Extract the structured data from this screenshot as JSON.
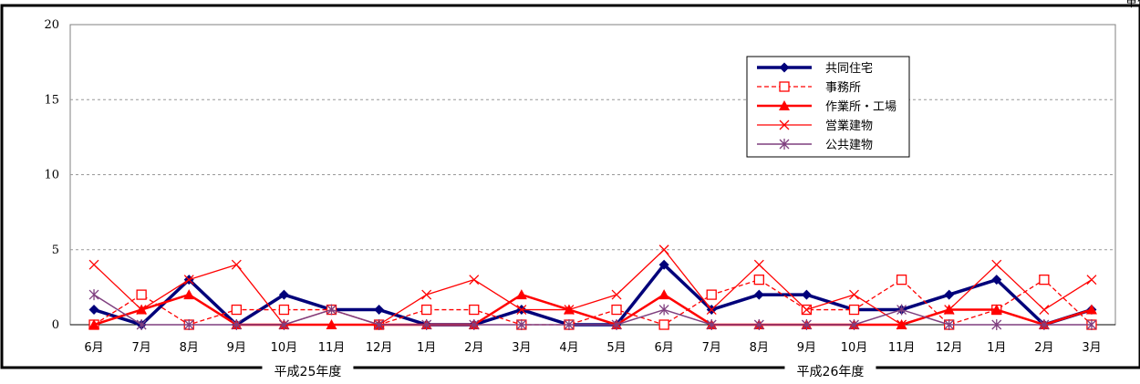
{
  "unit_label": "単位：件",
  "chart_data": {
    "type": "line",
    "categories": [
      "6月",
      "7月",
      "8月",
      "9月",
      "10月",
      "11月",
      "12月",
      "1月",
      "2月",
      "3月",
      "4月",
      "5月",
      "6月",
      "7月",
      "8月",
      "9月",
      "10月",
      "11月",
      "12月",
      "1月",
      "2月",
      "3月"
    ],
    "fiscal_years": [
      {
        "label": "平成25年度",
        "from_index": 0,
        "to_index": 9
      },
      {
        "label": "平成26年度",
        "from_index": 10,
        "to_index": 21
      }
    ],
    "ylim": [
      0,
      20
    ],
    "yticks": [
      0,
      5,
      10,
      15,
      20
    ],
    "grid": "horizontal",
    "legend_position": "top-right",
    "series": [
      {
        "name": "共同住宅",
        "color": "#00007a",
        "marker": "diamond",
        "dash": "solid",
        "width": 3.5,
        "values": [
          1,
          0,
          3,
          0,
          2,
          1,
          1,
          0,
          0,
          1,
          0,
          0,
          4,
          1,
          2,
          2,
          1,
          1,
          2,
          3,
          0,
          1
        ]
      },
      {
        "name": "事務所",
        "color": "#ff0000",
        "marker": "square-open",
        "dash": "dashed",
        "width": 1.3,
        "values": [
          0,
          2,
          0,
          1,
          1,
          1,
          0,
          1,
          1,
          0,
          0,
          1,
          0,
          2,
          3,
          1,
          1,
          3,
          0,
          1,
          3,
          0
        ]
      },
      {
        "name": "作業所・工場",
        "color": "#ff0000",
        "marker": "triangle",
        "dash": "solid",
        "width": 2.5,
        "values": [
          0,
          1,
          2,
          0,
          0,
          0,
          0,
          0,
          0,
          2,
          1,
          0,
          2,
          0,
          0,
          0,
          0,
          0,
          1,
          1,
          0,
          1
        ]
      },
      {
        "name": "営業建物",
        "color": "#ff0000",
        "marker": "x",
        "dash": "solid",
        "width": 1.3,
        "values": [
          4,
          1,
          3,
          4,
          0,
          1,
          0,
          2,
          3,
          1,
          1,
          2,
          5,
          1,
          4,
          1,
          2,
          0,
          1,
          4,
          1,
          3
        ]
      },
      {
        "name": "公共建物",
        "color": "#7f3f7f",
        "marker": "asterisk",
        "dash": "solid",
        "width": 1.5,
        "values": [
          2,
          0,
          0,
          0,
          0,
          1,
          0,
          0,
          0,
          0,
          0,
          0,
          1,
          0,
          0,
          0,
          0,
          1,
          0,
          0,
          0,
          0
        ]
      }
    ]
  }
}
